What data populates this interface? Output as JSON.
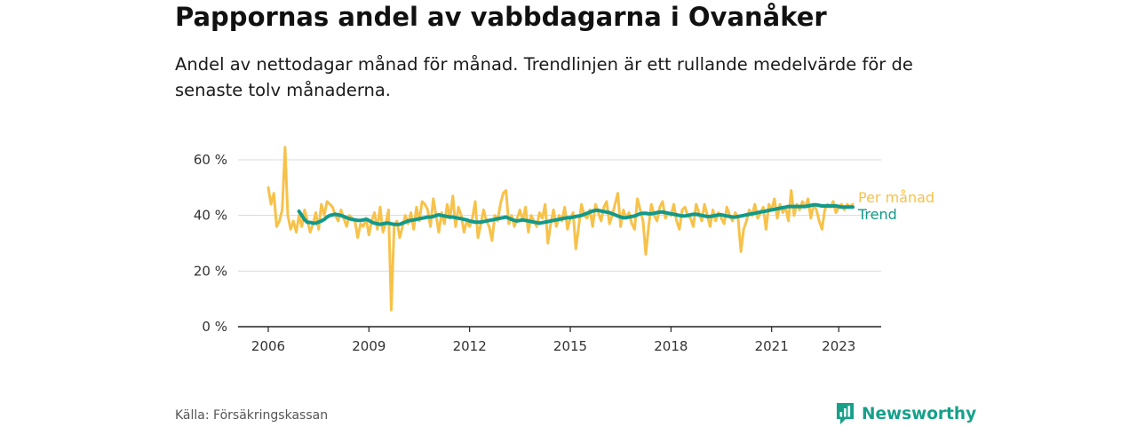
{
  "header": {
    "title": "Pappornas andel av vabbdagarna i Ovanåker",
    "subtitle": "Andel av nettodagar månad för månad. Trendlinjen är ett rullande medelvärde för de senaste tolv månaderna."
  },
  "footer": {
    "source": "Källa: Försäkringskassan",
    "brand": "Newsworthy",
    "brand_icon": "newsworthy-logo-icon",
    "brand_color": "#16a08a"
  },
  "chart_data": {
    "type": "line",
    "title": "Pappornas andel av vabbdagarna i Ovanåker",
    "subtitle": "Andel av nettodagar månad för månad. Trendlinjen är ett rullande medelvärde för de senaste tolv månaderna.",
    "xlabel": "",
    "ylabel": "",
    "ylim": [
      0,
      60
    ],
    "xlim": [
      "2006-01",
      "2023-06"
    ],
    "y_ticks": [
      0,
      20,
      40,
      60
    ],
    "y_tick_labels": [
      "0 %",
      "20 %",
      "40 %",
      "60 %"
    ],
    "x_ticks": [
      "2006-01",
      "2009-01",
      "2012-01",
      "2015-01",
      "2018-01",
      "2021-01",
      "2023-01"
    ],
    "x_tick_labels": [
      "2006",
      "2009",
      "2012",
      "2015",
      "2018",
      "2021",
      "2023"
    ],
    "grid": true,
    "legend": "inline labels at right end of lines",
    "series": [
      {
        "name": "Per månad",
        "color": "#f7c24a",
        "x": [
          "2006-01",
          "2006-02",
          "2006-03",
          "2006-04",
          "2006-05",
          "2006-06",
          "2006-07",
          "2006-08",
          "2006-09",
          "2006-10",
          "2006-11",
          "2006-12",
          "2007-01",
          "2007-02",
          "2007-03",
          "2007-04",
          "2007-05",
          "2007-06",
          "2007-07",
          "2007-08",
          "2007-09",
          "2007-10",
          "2007-11",
          "2007-12",
          "2008-01",
          "2008-02",
          "2008-03",
          "2008-04",
          "2008-05",
          "2008-06",
          "2008-07",
          "2008-08",
          "2008-09",
          "2008-10",
          "2008-11",
          "2008-12",
          "2009-01",
          "2009-02",
          "2009-03",
          "2009-04",
          "2009-05",
          "2009-06",
          "2009-07",
          "2009-08",
          "2009-09",
          "2009-10",
          "2009-11",
          "2009-12",
          "2010-01",
          "2010-02",
          "2010-03",
          "2010-04",
          "2010-05",
          "2010-06",
          "2010-07",
          "2010-08",
          "2010-09",
          "2010-10",
          "2010-11",
          "2010-12",
          "2011-01",
          "2011-02",
          "2011-03",
          "2011-04",
          "2011-05",
          "2011-06",
          "2011-07",
          "2011-08",
          "2011-09",
          "2011-10",
          "2011-11",
          "2011-12",
          "2012-01",
          "2012-02",
          "2012-03",
          "2012-04",
          "2012-05",
          "2012-06",
          "2012-07",
          "2012-08",
          "2012-09",
          "2012-10",
          "2012-11",
          "2012-12",
          "2013-01",
          "2013-02",
          "2013-03",
          "2013-04",
          "2013-05",
          "2013-06",
          "2013-07",
          "2013-08",
          "2013-09",
          "2013-10",
          "2013-11",
          "2013-12",
          "2014-01",
          "2014-02",
          "2014-03",
          "2014-04",
          "2014-05",
          "2014-06",
          "2014-07",
          "2014-08",
          "2014-09",
          "2014-10",
          "2014-11",
          "2014-12",
          "2015-01",
          "2015-02",
          "2015-03",
          "2015-04",
          "2015-05",
          "2015-06",
          "2015-07",
          "2015-08",
          "2015-09",
          "2015-10",
          "2015-11",
          "2015-12",
          "2016-01",
          "2016-02",
          "2016-03",
          "2016-04",
          "2016-05",
          "2016-06",
          "2016-07",
          "2016-08",
          "2016-09",
          "2016-10",
          "2016-11",
          "2016-12",
          "2017-01",
          "2017-02",
          "2017-03",
          "2017-04",
          "2017-05",
          "2017-06",
          "2017-07",
          "2017-08",
          "2017-09",
          "2017-10",
          "2017-11",
          "2017-12",
          "2018-01",
          "2018-02",
          "2018-03",
          "2018-04",
          "2018-05",
          "2018-06",
          "2018-07",
          "2018-08",
          "2018-09",
          "2018-10",
          "2018-11",
          "2018-12",
          "2019-01",
          "2019-02",
          "2019-03",
          "2019-04",
          "2019-05",
          "2019-06",
          "2019-07",
          "2019-08",
          "2019-09",
          "2019-10",
          "2019-11",
          "2019-12",
          "2020-01",
          "2020-02",
          "2020-03",
          "2020-04",
          "2020-05",
          "2020-06",
          "2020-07",
          "2020-08",
          "2020-09",
          "2020-10",
          "2020-11",
          "2020-12",
          "2021-01",
          "2021-02",
          "2021-03",
          "2021-04",
          "2021-05",
          "2021-06",
          "2021-07",
          "2021-08",
          "2021-09",
          "2021-10",
          "2021-11",
          "2021-12",
          "2022-01",
          "2022-02",
          "2022-03",
          "2022-04",
          "2022-05",
          "2022-06",
          "2022-07",
          "2022-08",
          "2022-09",
          "2022-10",
          "2022-11",
          "2022-12",
          "2023-01",
          "2023-02",
          "2023-03",
          "2023-04",
          "2023-05",
          "2023-06"
        ],
        "values": [
          50,
          44,
          48,
          36,
          38,
          42,
          64.5,
          40,
          35,
          38,
          34,
          40,
          36,
          42,
          38,
          34,
          37,
          41,
          35,
          44,
          40,
          45,
          44,
          43,
          40,
          38,
          42,
          39,
          36,
          40,
          39,
          38,
          32,
          37,
          36,
          39,
          33,
          38,
          41,
          35,
          43,
          34,
          37,
          42,
          6,
          36,
          38,
          32,
          36,
          40,
          37,
          41,
          35,
          43,
          38,
          45,
          44,
          42,
          36,
          46,
          40,
          34,
          41,
          37,
          44,
          39,
          47,
          36,
          43,
          40,
          34,
          38,
          36,
          39,
          45,
          32,
          37,
          42,
          38,
          36,
          31,
          40,
          38,
          44,
          48,
          49,
          37,
          40,
          36,
          39,
          42,
          38,
          43,
          34,
          40,
          38,
          36,
          41,
          39,
          44,
          30,
          37,
          42,
          36,
          40,
          38,
          43,
          35,
          39,
          41,
          28,
          36,
          44,
          40,
          39,
          42,
          36,
          44,
          41,
          38,
          43,
          45,
          37,
          40,
          44,
          48,
          36,
          42,
          39,
          41,
          37,
          35,
          46,
          42,
          38,
          26,
          36,
          44,
          40,
          38,
          43,
          45,
          39,
          41,
          40,
          44,
          38,
          35,
          42,
          43,
          40,
          39,
          36,
          44,
          41,
          38,
          44,
          40,
          36,
          42,
          38,
          41,
          39,
          37,
          43,
          40,
          38,
          41,
          39,
          27,
          35,
          38,
          42,
          40,
          44,
          39,
          41,
          43,
          35,
          44,
          42,
          46,
          39,
          44,
          41,
          43,
          38,
          49,
          40,
          44,
          42,
          45,
          43,
          46,
          39,
          44,
          42,
          38,
          35,
          42,
          44,
          43,
          45,
          41,
          43,
          44,
          42,
          44,
          43,
          44
        ]
      },
      {
        "name": "Trend",
        "color": "#12998a",
        "x": [
          "2006-12",
          "2007-01",
          "2007-02",
          "2007-03",
          "2007-04",
          "2007-05",
          "2007-06",
          "2007-07",
          "2007-08",
          "2007-09",
          "2007-10",
          "2007-11",
          "2007-12",
          "2008-01",
          "2008-02",
          "2008-03",
          "2008-04",
          "2008-05",
          "2008-06",
          "2008-07",
          "2008-08",
          "2008-09",
          "2008-10",
          "2008-11",
          "2008-12",
          "2009-01",
          "2009-02",
          "2009-03",
          "2009-04",
          "2009-05",
          "2009-06",
          "2009-07",
          "2009-08",
          "2009-09",
          "2009-10",
          "2009-11",
          "2009-12",
          "2010-01",
          "2010-02",
          "2010-03",
          "2010-04",
          "2010-05",
          "2010-06",
          "2010-07",
          "2010-08",
          "2010-09",
          "2010-10",
          "2010-11",
          "2010-12",
          "2011-01",
          "2011-02",
          "2011-03",
          "2011-04",
          "2011-05",
          "2011-06",
          "2011-07",
          "2011-08",
          "2011-09",
          "2011-10",
          "2011-11",
          "2011-12",
          "2012-01",
          "2012-02",
          "2012-03",
          "2012-04",
          "2012-05",
          "2012-06",
          "2012-07",
          "2012-08",
          "2012-09",
          "2012-10",
          "2012-11",
          "2012-12",
          "2013-01",
          "2013-02",
          "2013-03",
          "2013-04",
          "2013-05",
          "2013-06",
          "2013-07",
          "2013-08",
          "2013-09",
          "2013-10",
          "2013-11",
          "2013-12",
          "2014-01",
          "2014-02",
          "2014-03",
          "2014-04",
          "2014-05",
          "2014-06",
          "2014-07",
          "2014-08",
          "2014-09",
          "2014-10",
          "2014-11",
          "2014-12",
          "2015-01",
          "2015-02",
          "2015-03",
          "2015-04",
          "2015-05",
          "2015-06",
          "2015-07",
          "2015-08",
          "2015-09",
          "2015-10",
          "2015-11",
          "2015-12",
          "2016-01",
          "2016-02",
          "2016-03",
          "2016-04",
          "2016-05",
          "2016-06",
          "2016-07",
          "2016-08",
          "2016-09",
          "2016-10",
          "2016-11",
          "2016-12",
          "2017-01",
          "2017-02",
          "2017-03",
          "2017-04",
          "2017-05",
          "2017-06",
          "2017-07",
          "2017-08",
          "2017-09",
          "2017-10",
          "2017-11",
          "2017-12",
          "2018-01",
          "2018-02",
          "2018-03",
          "2018-04",
          "2018-05",
          "2018-06",
          "2018-07",
          "2018-08",
          "2018-09",
          "2018-10",
          "2018-11",
          "2018-12",
          "2019-01",
          "2019-02",
          "2019-03",
          "2019-04",
          "2019-05",
          "2019-06",
          "2019-07",
          "2019-08",
          "2019-09",
          "2019-10",
          "2019-11",
          "2019-12",
          "2020-01",
          "2020-02",
          "2020-03",
          "2020-04",
          "2020-05",
          "2020-06",
          "2020-07",
          "2020-08",
          "2020-09",
          "2020-10",
          "2020-11",
          "2020-12",
          "2021-01",
          "2021-02",
          "2021-03",
          "2021-04",
          "2021-05",
          "2021-06",
          "2021-07",
          "2021-08",
          "2021-09",
          "2021-10",
          "2021-11",
          "2021-12",
          "2022-01",
          "2022-02",
          "2022-03",
          "2022-04",
          "2022-05",
          "2022-06",
          "2022-07",
          "2022-08",
          "2022-09",
          "2022-10",
          "2022-11",
          "2022-12",
          "2023-01",
          "2023-02",
          "2023-03",
          "2023-04",
          "2023-05",
          "2023-06"
        ],
        "values": [
          41.5,
          40,
          38.5,
          37.5,
          37.5,
          37.2,
          37.2,
          37.6,
          38,
          38.6,
          39.4,
          40,
          40.2,
          40.4,
          40.2,
          40,
          39.6,
          39.2,
          38.8,
          38.6,
          38.4,
          38.2,
          38.2,
          38.4,
          38.6,
          38.2,
          37.6,
          37.2,
          37,
          36.8,
          37,
          37.2,
          37.2,
          37,
          36.8,
          36.8,
          36.8,
          37.2,
          37.6,
          38,
          38.2,
          38.4,
          38.6,
          38.8,
          39,
          39.2,
          39.4,
          39.4,
          39.6,
          40,
          40.2,
          40,
          39.8,
          39.6,
          39.4,
          39.4,
          39.2,
          39,
          38.8,
          38.6,
          38.4,
          38,
          37.8,
          37.6,
          37.6,
          37.6,
          37.8,
          38,
          38.2,
          38.4,
          38.6,
          38.8,
          39,
          39.2,
          39.4,
          39,
          38.6,
          38.2,
          38,
          38.2,
          38.4,
          38.2,
          38,
          37.8,
          37.6,
          37.4,
          37.2,
          37.4,
          37.6,
          37.8,
          38,
          38.2,
          38.4,
          38.6,
          38.8,
          39,
          39.2,
          39.2,
          39.4,
          39.6,
          39.8,
          40,
          40.4,
          40.8,
          41.2,
          41.6,
          41.8,
          41.8,
          41.6,
          41.4,
          41.2,
          41,
          40.6,
          40.2,
          39.8,
          39.4,
          39.2,
          39.2,
          39.4,
          39.6,
          39.8,
          40.2,
          40.6,
          40.8,
          40.8,
          40.6,
          40.6,
          40.8,
          41,
          41.2,
          41.2,
          41,
          40.8,
          40.6,
          40.4,
          40.2,
          40,
          39.8,
          39.8,
          40,
          40.2,
          40.4,
          40.4,
          40.2,
          40,
          39.8,
          39.6,
          39.6,
          39.8,
          40,
          40.2,
          40.2,
          40,
          39.8,
          39.6,
          39.4,
          39.4,
          39.6,
          39.8,
          40,
          40.2,
          40.4,
          40.6,
          40.8,
          41,
          41.2,
          41.4,
          41.6,
          41.8,
          42,
          42.2,
          42.4,
          42.6,
          42.8,
          43,
          43.2,
          43.2,
          43.2,
          43.2,
          43.2,
          43.2,
          43.2,
          43.4,
          43.6,
          43.8,
          43.8,
          43.6,
          43.4,
          43.4,
          43.4,
          43.4,
          43.4,
          43.4,
          43.2,
          43,
          43,
          43,
          43,
          43
        ]
      }
    ]
  }
}
